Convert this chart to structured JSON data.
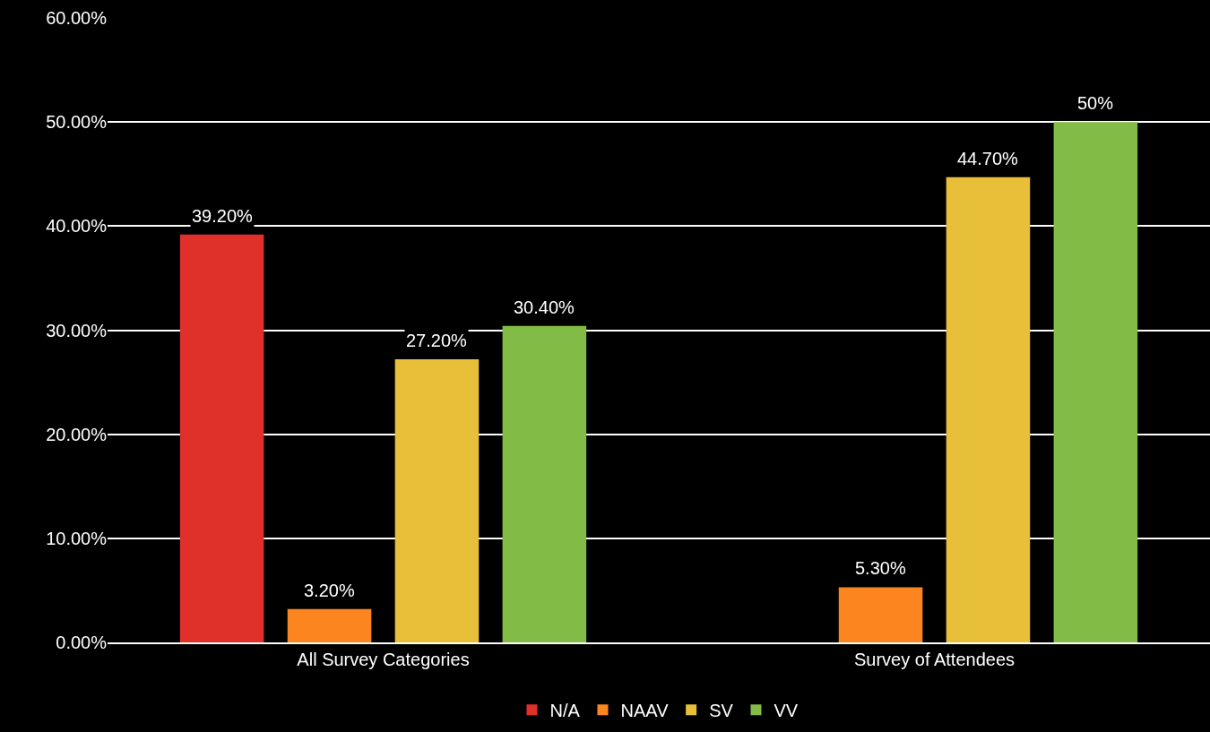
{
  "chart_data": {
    "type": "bar",
    "categories": [
      "All Survey Categories",
      "Survey of Attendees"
    ],
    "series": [
      {
        "name": "N/A",
        "color": "#e0302a",
        "values": [
          39.2,
          null
        ],
        "value_labels": [
          "39.20%",
          null
        ]
      },
      {
        "name": "NAAV",
        "color": "#fd8520",
        "values": [
          3.2,
          5.3
        ],
        "value_labels": [
          "3.20%",
          "5.30%"
        ]
      },
      {
        "name": "SV",
        "color": "#e8bf38",
        "values": [
          27.2,
          44.7
        ],
        "value_labels": [
          "27.20%",
          "44.70%"
        ]
      },
      {
        "name": "VV",
        "color": "#82bb45",
        "values": [
          30.4,
          50
        ],
        "value_labels": [
          "30.40%",
          "50%"
        ]
      }
    ],
    "ylim": [
      0,
      60
    ],
    "yticks": [
      {
        "value": 0,
        "label": "0.00%"
      },
      {
        "value": 10,
        "label": "10.00%"
      },
      {
        "value": 20,
        "label": "20.00%"
      },
      {
        "value": 30,
        "label": "30.00%"
      },
      {
        "value": 40,
        "label": "40.00%"
      },
      {
        "value": 50,
        "label": "50.00%"
      },
      {
        "value": 60,
        "label": "60.00%"
      }
    ],
    "grid": "y",
    "legend": "bottom"
  }
}
